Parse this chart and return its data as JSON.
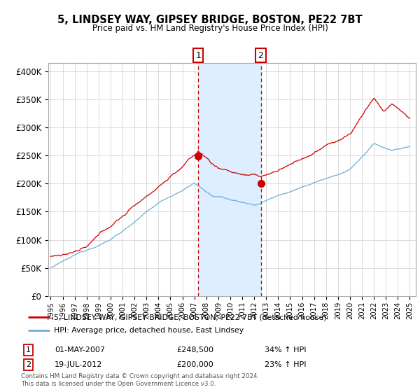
{
  "title": "5, LINDSEY WAY, GIPSEY BRIDGE, BOSTON, PE22 7BT",
  "subtitle": "Price paid vs. HM Land Registry's House Price Index (HPI)",
  "ylabel_ticks": [
    "£0",
    "£50K",
    "£100K",
    "£150K",
    "£200K",
    "£250K",
    "£300K",
    "£350K",
    "£400K"
  ],
  "ytick_vals": [
    0,
    50000,
    100000,
    150000,
    200000,
    250000,
    300000,
    350000,
    400000
  ],
  "ylim": [
    0,
    415000
  ],
  "sale1_date": "01-MAY-2007",
  "sale1_price": 248500,
  "sale1_hpi": "34% ↑ HPI",
  "sale1_year": 2007.33,
  "sale2_date": "19-JUL-2012",
  "sale2_price": 200000,
  "sale2_hpi": "23% ↑ HPI",
  "sale2_year": 2012.55,
  "legend_label1": "5, LINDSEY WAY, GIPSEY BRIDGE, BOSTON, PE22 7BT (detached house)",
  "legend_label2": "HPI: Average price, detached house, East Lindsey",
  "footer": "Contains HM Land Registry data © Crown copyright and database right 2024.\nThis data is licensed under the Open Government Licence v3.0.",
  "hpi_color": "#6baed6",
  "price_color": "#cc0000",
  "shade_color": "#ddeeff",
  "box_color": "#cc0000",
  "bg_color": "#f5f5f5"
}
